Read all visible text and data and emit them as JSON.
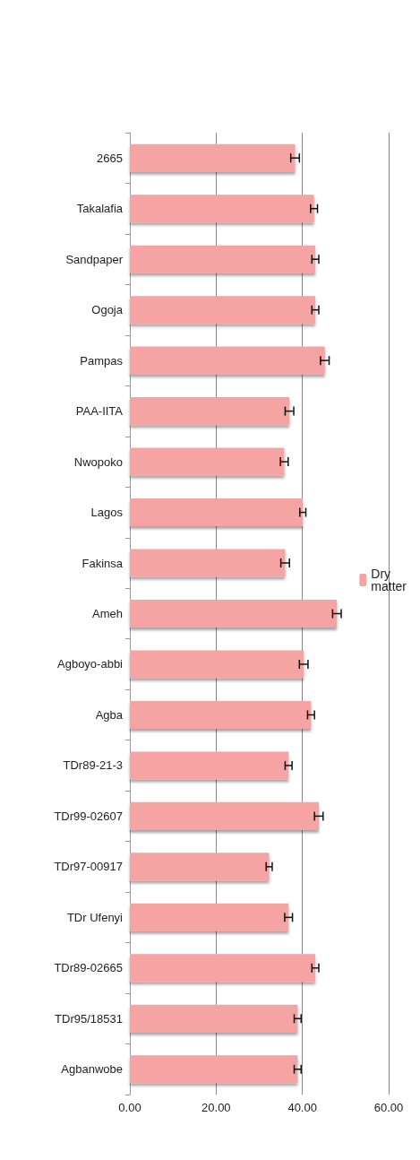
{
  "chart_data": {
    "type": "bar",
    "orientation": "horizontal",
    "categories": [
      "2665",
      "Takalafia",
      "Sandpaper",
      "Ogoja",
      "Pampas",
      "PAA-IITA",
      "Nwopoko",
      "Lagos",
      "Fakinsa",
      "Ameh",
      "Agboyo-abbi",
      "Agba",
      "TDr89-21-3",
      "TDr99-02607",
      "TDr97-00917",
      "TDr Ufenyi",
      "TDr89-02665",
      "TDr95/18531",
      "Agbanwobe"
    ],
    "series": [
      {
        "name": "Dry matter",
        "color": "#f5a3a3",
        "values": [
          38.3,
          42.7,
          43.0,
          43.0,
          45.2,
          37.0,
          35.8,
          40.1,
          36.0,
          48.0,
          40.3,
          42.0,
          36.8,
          43.8,
          32.3,
          36.8,
          43.0,
          38.9,
          38.9
        ],
        "errors": [
          1.0,
          0.8,
          0.8,
          0.8,
          1.0,
          1.0,
          0.9,
          0.7,
          1.0,
          1.0,
          1.0,
          0.8,
          0.8,
          1.0,
          0.7,
          0.9,
          0.8,
          0.8,
          0.8
        ]
      }
    ],
    "xlim": [
      0,
      60
    ],
    "xticks": [
      {
        "value": 0,
        "label": "0.00"
      },
      {
        "value": 20,
        "label": "20.00"
      },
      {
        "value": 40,
        "label": "40.00"
      },
      {
        "value": 60,
        "label": "60.00"
      }
    ],
    "grid": "x",
    "legend": "right"
  }
}
